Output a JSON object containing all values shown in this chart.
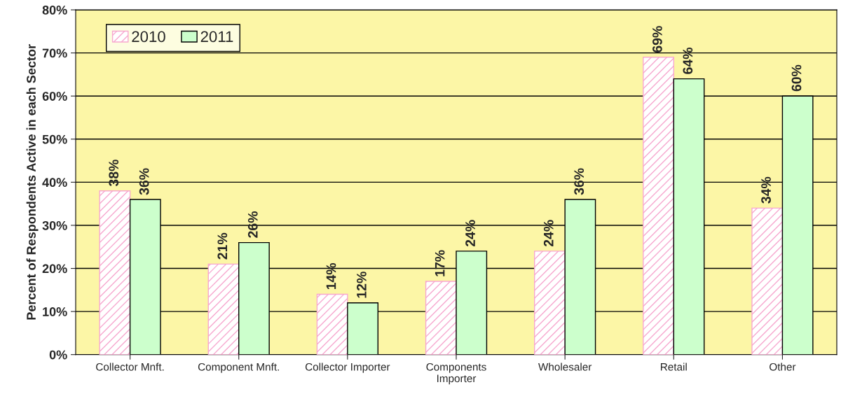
{
  "chart_data": {
    "type": "bar",
    "ylabel": "Percent of Respondents Active in each Sector",
    "categories": [
      "Collector Mnft.",
      "Component Mnft.",
      "Collector Importer",
      "Components\nImporter",
      "Wholesaler",
      "Retail",
      "Other"
    ],
    "series": [
      {
        "name": "2010",
        "color": "#f7a8cf",
        "values": [
          38,
          21,
          14,
          17,
          24,
          69,
          34
        ],
        "value_labels": [
          "38%",
          "21%",
          "14%",
          "17%",
          "24%",
          "69%",
          "34%"
        ]
      },
      {
        "name": "2011",
        "color": "#ccffcc",
        "values": [
          36,
          26,
          12,
          24,
          36,
          64,
          60
        ],
        "value_labels": [
          "36%",
          "26%",
          "12%",
          "24%",
          "36%",
          "64%",
          "60%"
        ]
      }
    ],
    "ylim": [
      0,
      80
    ],
    "yticks": [
      {
        "value": 0,
        "label": "0%"
      },
      {
        "value": 10,
        "label": "10%"
      },
      {
        "value": 20,
        "label": "20%"
      },
      {
        "value": 30,
        "label": "30%"
      },
      {
        "value": 40,
        "label": "40%"
      },
      {
        "value": 50,
        "label": "50%"
      },
      {
        "value": 60,
        "label": "60%"
      },
      {
        "value": 70,
        "label": "70%"
      },
      {
        "value": 80,
        "label": "80%"
      }
    ],
    "grid": "y",
    "legend": "top left"
  }
}
